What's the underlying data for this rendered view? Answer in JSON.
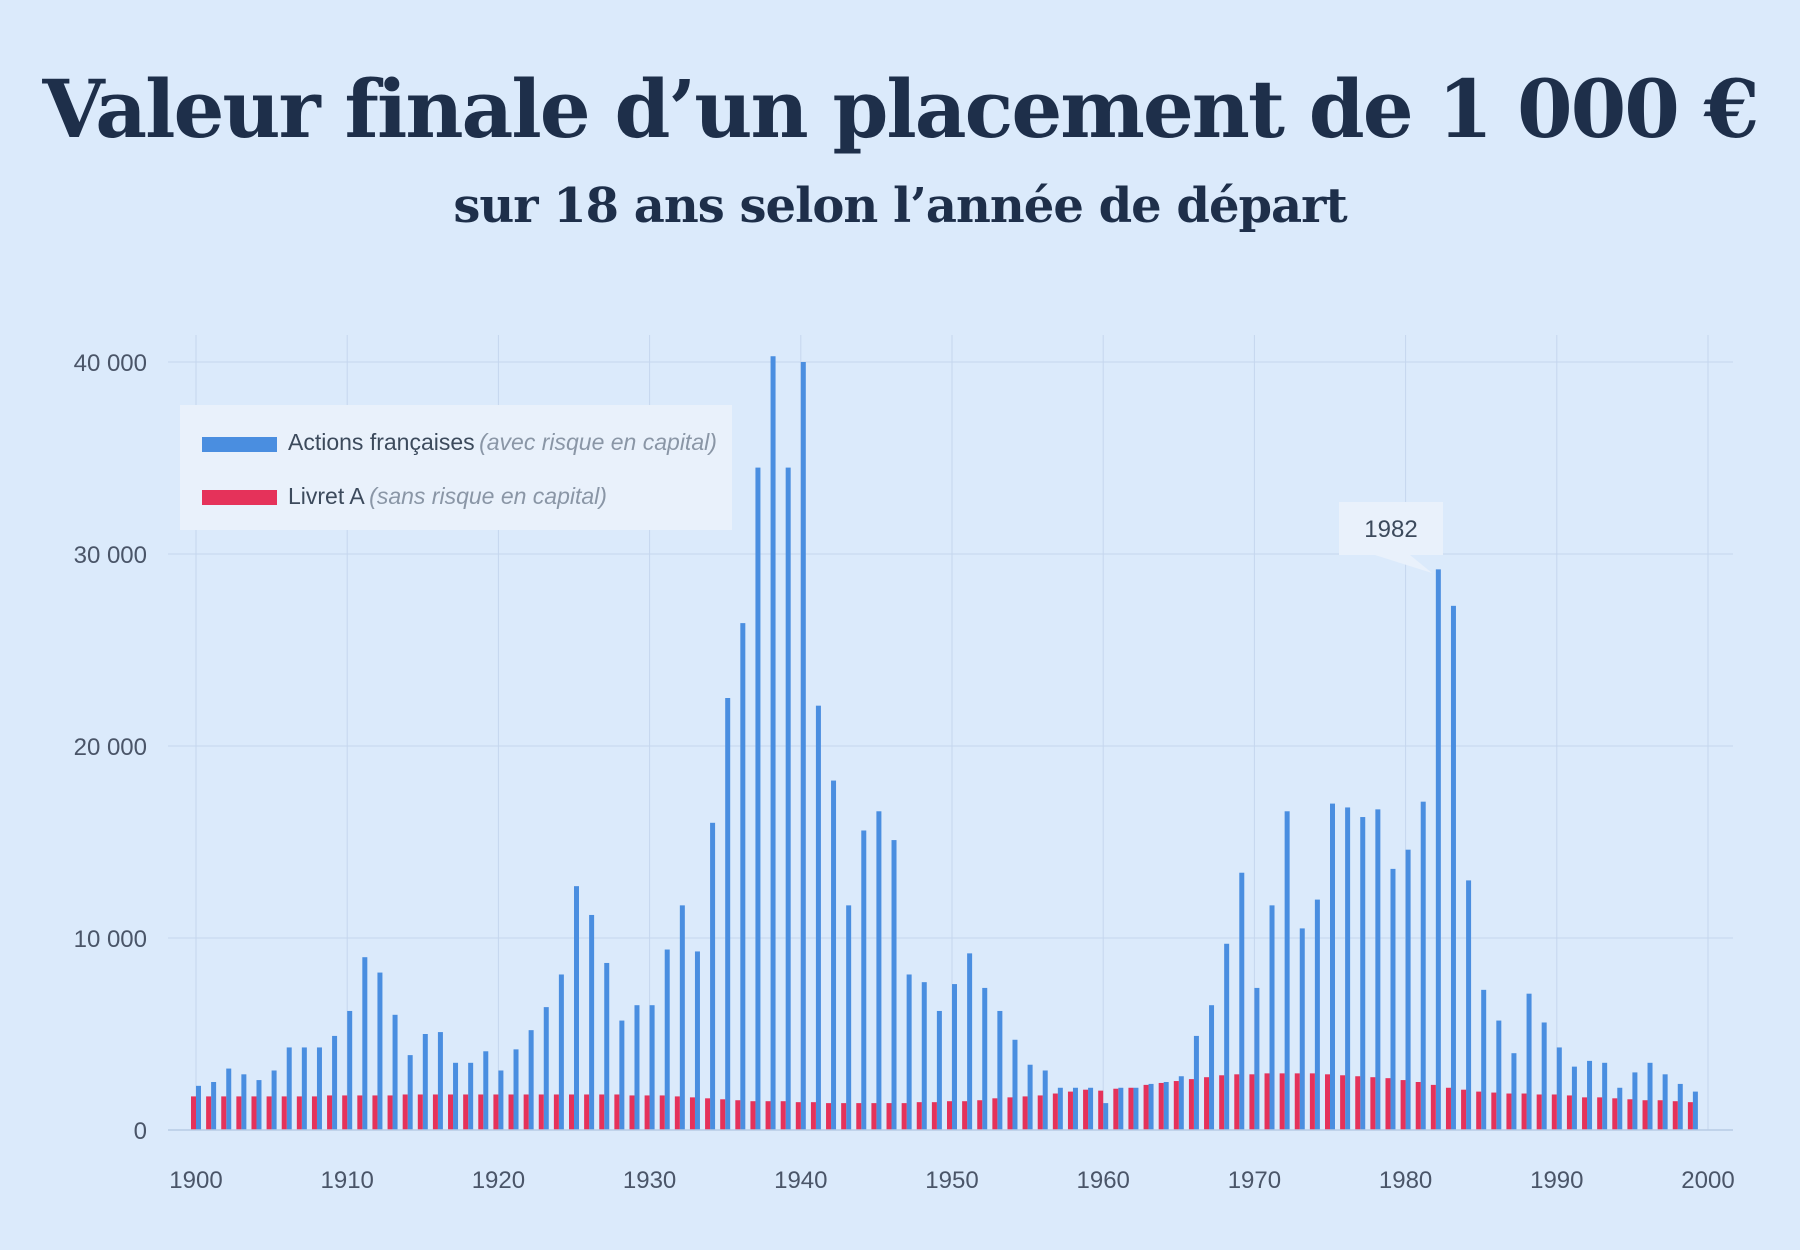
{
  "title": "Valeur finale d’un placement de 1 000 €",
  "subtitle": "sur 18 ans selon l’année de départ",
  "colors": {
    "background": "#dbeafb",
    "stocks": "#4a8ee0",
    "livret": "#e5325a",
    "grid": "#c5d6ee",
    "legend_bg": "#e9f1fb"
  },
  "legend": {
    "items": [
      {
        "label": "Actions françaises",
        "note": "(avec risque en capital)",
        "color": "#4a8ee0"
      },
      {
        "label": "Livret A",
        "note": "(sans risque en capital)",
        "color": "#e5325a"
      }
    ]
  },
  "annotation": {
    "label": "1982",
    "year": 1982
  },
  "chart_data": {
    "type": "bar",
    "x_range": [
      1900,
      2000
    ],
    "ylim": [
      0,
      40000
    ],
    "x_ticks": [
      "1900",
      "1910",
      "1920",
      "1930",
      "1940",
      "1950",
      "1960",
      "1970",
      "1980",
      "1990",
      "2000"
    ],
    "y_ticks": [
      "0",
      "10 000",
      "20 000",
      "30 000",
      "40 000"
    ],
    "legend_position": "top-left",
    "grid": true,
    "years": [
      1900,
      1901,
      1902,
      1903,
      1904,
      1905,
      1906,
      1907,
      1908,
      1909,
      1910,
      1911,
      1912,
      1913,
      1914,
      1915,
      1916,
      1917,
      1918,
      1919,
      1920,
      1921,
      1922,
      1923,
      1924,
      1925,
      1926,
      1927,
      1928,
      1929,
      1930,
      1931,
      1932,
      1933,
      1934,
      1935,
      1936,
      1937,
      1938,
      1939,
      1940,
      1941,
      1942,
      1943,
      1944,
      1945,
      1946,
      1947,
      1948,
      1949,
      1950,
      1951,
      1952,
      1953,
      1954,
      1955,
      1956,
      1957,
      1958,
      1959,
      1960,
      1961,
      1962,
      1963,
      1964,
      1965,
      1966,
      1967,
      1968,
      1969,
      1970,
      1971,
      1972,
      1973,
      1974,
      1975,
      1976,
      1977,
      1978,
      1979,
      1980,
      1981,
      1982,
      1983,
      1984,
      1985,
      1986,
      1987,
      1988,
      1989,
      1990,
      1991,
      1992,
      1993,
      1994,
      1995,
      1996,
      1997,
      1998,
      1999
    ],
    "series": [
      {
        "name": "Actions françaises",
        "values": [
          2300,
          2500,
          3200,
          2900,
          2600,
          3100,
          4300,
          4300,
          4300,
          4900,
          6200,
          9000,
          8200,
          6000,
          3900,
          5000,
          5100,
          3500,
          3500,
          4100,
          3100,
          4200,
          5200,
          6400,
          8100,
          12700,
          11200,
          8700,
          5700,
          6500,
          6500,
          9400,
          11700,
          9300,
          16000,
          22500,
          26400,
          34500,
          40300,
          34500,
          40000,
          22100,
          18200,
          11700,
          15600,
          16600,
          15100,
          8100,
          7700,
          6200,
          7600,
          9200,
          7400,
          6200,
          4700,
          3400,
          3100,
          2200,
          2200,
          2200,
          1400,
          2200,
          2200,
          2400,
          2500,
          2800,
          4900,
          6500,
          9700,
          13400,
          7400,
          11700,
          16600,
          10500,
          12000,
          17000,
          16800,
          16300,
          16700,
          13600,
          14600,
          17100,
          29200,
          27300,
          13000,
          7300,
          5700,
          4000,
          7100,
          5600,
          4300,
          3300,
          3600,
          3500,
          2200,
          3000,
          3500,
          2900,
          2400,
          2000
        ]
      },
      {
        "name": "Livret A",
        "values": [
          1750,
          1750,
          1750,
          1750,
          1750,
          1750,
          1750,
          1750,
          1750,
          1800,
          1800,
          1800,
          1800,
          1800,
          1850,
          1850,
          1850,
          1850,
          1850,
          1850,
          1850,
          1850,
          1850,
          1850,
          1850,
          1850,
          1850,
          1850,
          1850,
          1800,
          1800,
          1800,
          1750,
          1700,
          1650,
          1600,
          1550,
          1500,
          1500,
          1500,
          1450,
          1450,
          1400,
          1400,
          1400,
          1400,
          1400,
          1400,
          1450,
          1450,
          1500,
          1500,
          1550,
          1650,
          1700,
          1750,
          1800,
          1900,
          2000,
          2100,
          2050,
          2150,
          2200,
          2350,
          2450,
          2550,
          2650,
          2750,
          2850,
          2900,
          2900,
          2950,
          2950,
          2950,
          2950,
          2900,
          2850,
          2800,
          2750,
          2700,
          2600,
          2500,
          2350,
          2200,
          2100,
          2000,
          1950,
          1900,
          1900,
          1850,
          1850,
          1800,
          1700,
          1700,
          1650,
          1600,
          1550,
          1550,
          1500,
          1450
        ]
      }
    ]
  }
}
